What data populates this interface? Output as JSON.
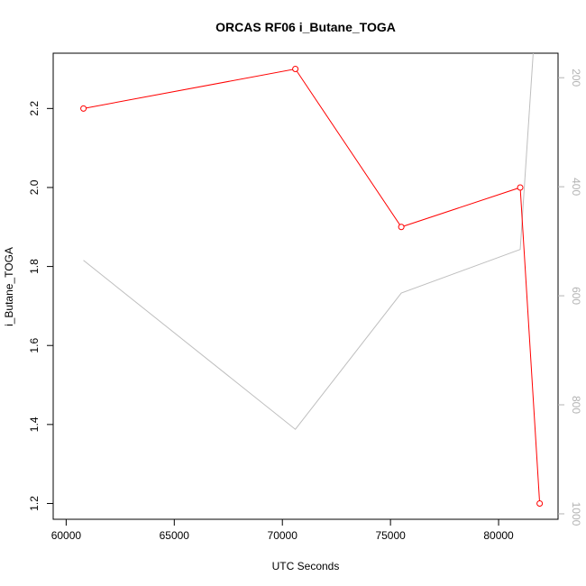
{
  "chart_data": {
    "type": "line",
    "title": "ORCAS RF06 i_Butane_TOGA",
    "xlabel": "UTC Seconds",
    "ylabel": "i_Butane_TOGA",
    "xlim": [
      59400,
      82750
    ],
    "ylim": [
      1.16,
      2.34
    ],
    "x_ticks": [
      60000,
      65000,
      70000,
      75000,
      80000
    ],
    "y_ticks": [
      1.2,
      1.4,
      1.6,
      1.8,
      2.0,
      2.2
    ],
    "y_tick_labels": [
      "1.2",
      "1.4",
      "1.6",
      "1.8",
      "2.0",
      "2.2"
    ],
    "y2_reversed": true,
    "y2lim": [
      1010,
      155
    ],
    "y2_ticks": [
      200,
      400,
      600,
      800,
      1000
    ],
    "series": [
      {
        "axis": "left",
        "color": "#ff0000",
        "markers": "open-circle",
        "x": [
          60800,
          70600,
          75500,
          81000,
          81900
        ],
        "y": [
          2.2,
          2.3,
          1.9,
          2.0,
          1.2
        ]
      },
      {
        "axis": "right",
        "color": "#bebebe",
        "markers": "none",
        "x": [
          60800,
          70600,
          75500,
          81000,
          81600
        ],
        "y": [
          535,
          845,
          595,
          515,
          155
        ]
      }
    ]
  }
}
